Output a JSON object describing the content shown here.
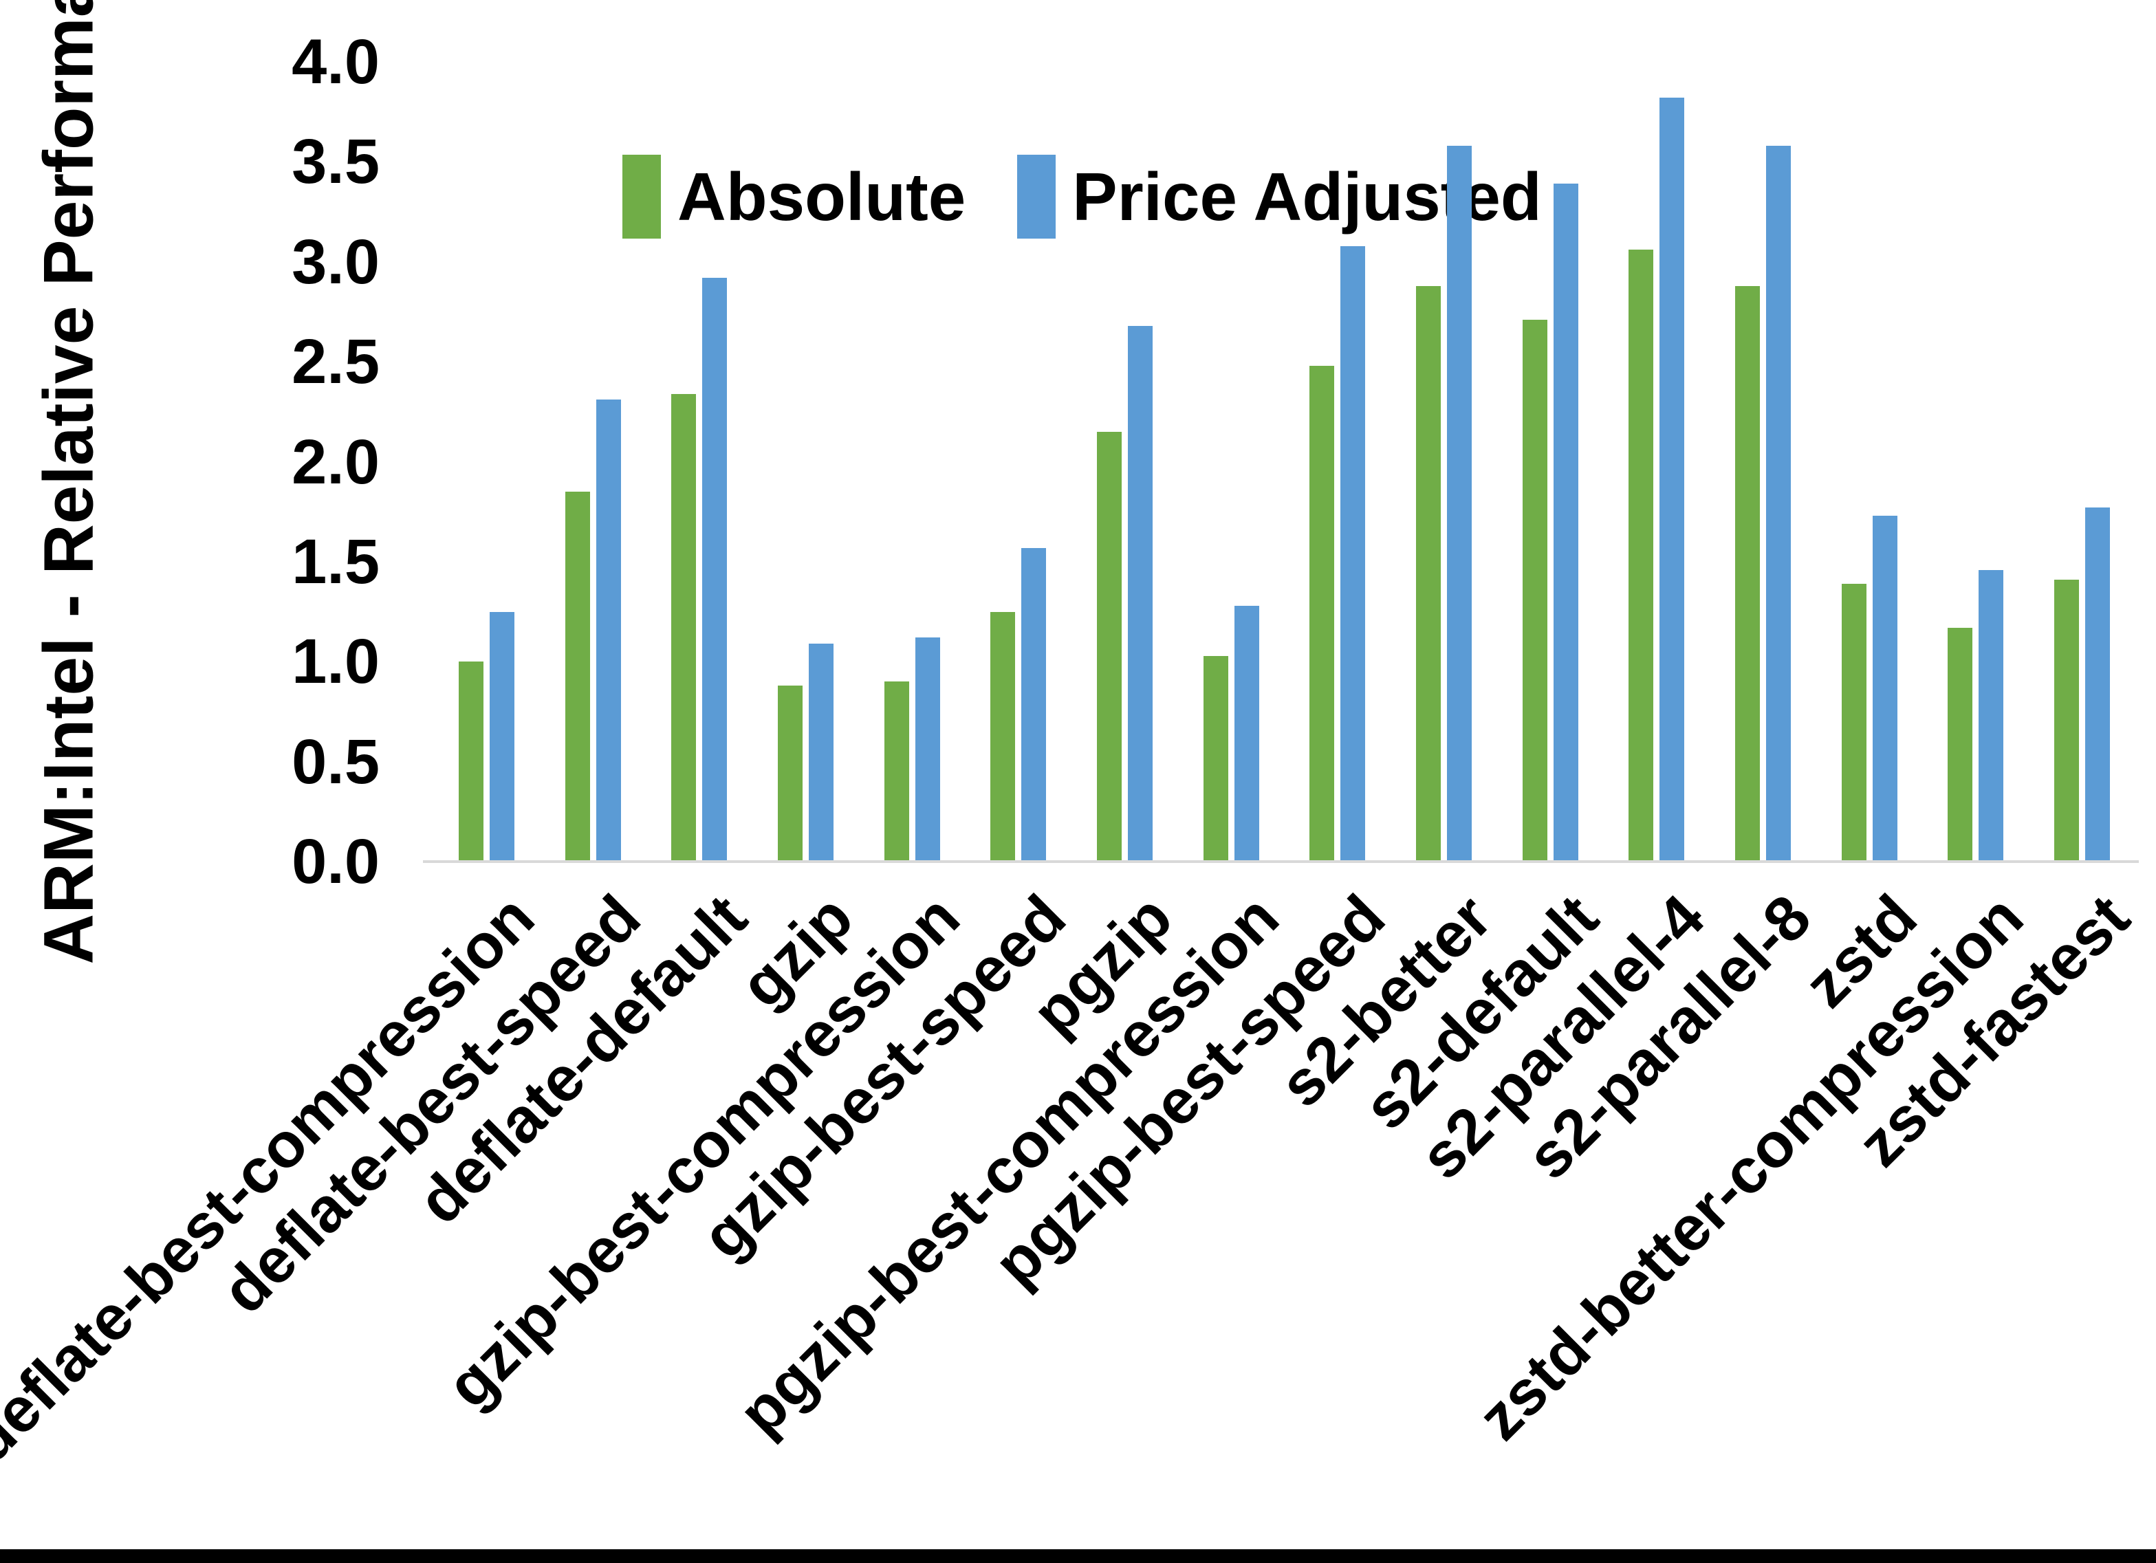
{
  "colors": {
    "background": "#FFFFFF",
    "absolute_series": "#70AD47",
    "price_adjusted_series": "#5B9BD5",
    "axis_line": "#D9D9D9",
    "text": "#000000",
    "bottom_border": "#000000"
  },
  "legend": {
    "position": "top-center"
  },
  "chart_data": {
    "type": "bar",
    "title": "",
    "xlabel": "",
    "ylabel": "ARM:Intel - Relative Performance",
    "ylim": [
      0,
      4.0
    ],
    "yticks": [
      "0.0",
      "0.5",
      "1.0",
      "1.5",
      "2.0",
      "2.5",
      "3.0",
      "3.5",
      "4.0"
    ],
    "grid": false,
    "legend_position": "top-center",
    "categories": [
      "deflate-best-compression",
      "deflate-best-speed",
      "deflate-default",
      "gzip",
      "gzip-best-compression",
      "gzip-best-speed",
      "pgzip",
      "pgzip-best-compression",
      "pgzip-best-speed",
      "s2-better",
      "s2-default",
      "s2-parallel-4",
      "s2-parallel-8",
      "zstd",
      "zstd-better-compression",
      "zstd-fastest"
    ],
    "series": [
      {
        "name": "Absolute",
        "color": "#70AD47",
        "values": [
          1.0,
          1.85,
          2.34,
          0.88,
          0.9,
          1.25,
          2.15,
          1.03,
          2.48,
          2.88,
          2.71,
          3.06,
          2.88,
          1.39,
          1.17,
          1.41
        ]
      },
      {
        "name": "Price Adjusted",
        "color": "#5B9BD5",
        "values": [
          1.25,
          2.31,
          2.92,
          1.09,
          1.12,
          1.57,
          2.68,
          1.28,
          3.08,
          3.58,
          3.39,
          3.82,
          3.58,
          1.73,
          1.46,
          1.77
        ]
      }
    ]
  }
}
